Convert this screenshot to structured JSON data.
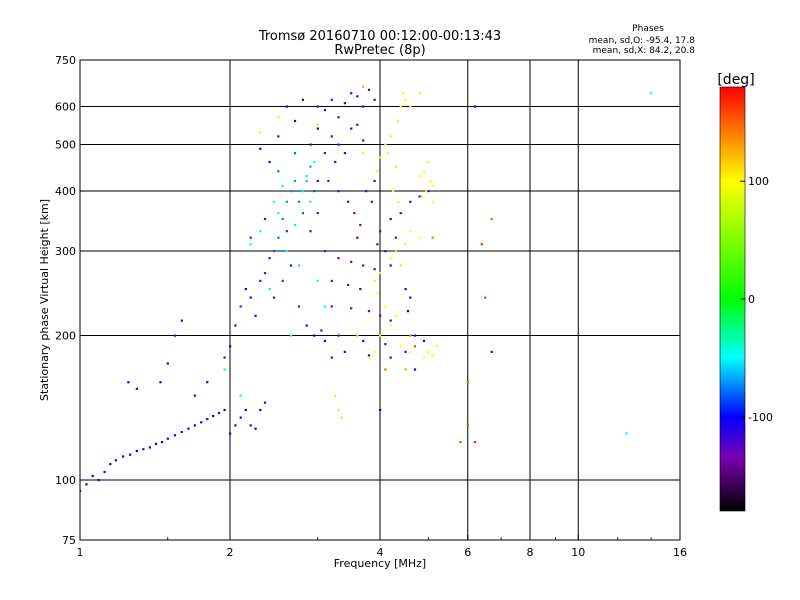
{
  "header": {
    "title_line1": "Tromsø 20160710 00:12:00-00:13:43",
    "title_line2": "RwPretec (8p)",
    "stats_title": "Phases",
    "stats_o": "mean, sd,O: -95.4, 17.8",
    "stats_x": "mean, sd,X:  84.2, 20.8"
  },
  "chart_data": {
    "type": "scatter",
    "xlabel": "Frequency [MHz]",
    "ylabel": "Stationary phase Virtual Height [km]",
    "xscale": "log",
    "yscale": "log",
    "xlim": [
      1,
      16
    ],
    "ylim": [
      75,
      750
    ],
    "x_ticks": [
      1,
      2,
      4,
      6,
      8,
      10,
      16
    ],
    "x_tick_labels": [
      "1",
      "2",
      "4",
      "6",
      "8",
      "10",
      "16"
    ],
    "y_ticks": [
      75,
      100,
      200,
      300,
      400,
      500,
      600,
      750
    ],
    "y_tick_labels": [
      "75",
      "100",
      "200",
      "300",
      "400",
      "500",
      "600",
      "750"
    ],
    "grid": true,
    "colorbar": {
      "label": "[deg]",
      "range": [
        -180,
        180
      ],
      "ticks": [
        -100,
        0,
        100
      ],
      "tick_labels": [
        "-100",
        "0",
        "100"
      ],
      "stops": [
        {
          "value": -180,
          "color": "#000000"
        },
        {
          "value": -135,
          "color": "#7a00b0"
        },
        {
          "value": -100,
          "color": "#0000ff"
        },
        {
          "value": -50,
          "color": "#00ffff"
        },
        {
          "value": 0,
          "color": "#00ff00"
        },
        {
          "value": 100,
          "color": "#ffff00"
        },
        {
          "value": 140,
          "color": "#ff8000"
        },
        {
          "value": 180,
          "color": "#ff0000"
        }
      ]
    },
    "series": [
      {
        "mode": "O",
        "points": [
          [
            1.0,
            95,
            -110
          ],
          [
            1.03,
            98,
            -105
          ],
          [
            1.06,
            102,
            -100
          ],
          [
            1.09,
            100,
            -108
          ],
          [
            1.12,
            104,
            -102
          ],
          [
            1.15,
            108,
            -110
          ],
          [
            1.18,
            110,
            -100
          ],
          [
            1.22,
            112,
            -106
          ],
          [
            1.26,
            113,
            -98
          ],
          [
            1.3,
            115,
            -104
          ],
          [
            1.34,
            116,
            -110
          ],
          [
            1.38,
            117,
            -100
          ],
          [
            1.42,
            119,
            -105
          ],
          [
            1.46,
            120,
            -100
          ],
          [
            1.5,
            122,
            -108
          ],
          [
            1.55,
            124,
            -102
          ],
          [
            1.6,
            126,
            -106
          ],
          [
            1.65,
            128,
            -98
          ],
          [
            1.7,
            130,
            -104
          ],
          [
            1.75,
            132,
            -100
          ],
          [
            1.8,
            134,
            -110
          ],
          [
            1.85,
            136,
            -102
          ],
          [
            1.9,
            138,
            -106
          ],
          [
            1.95,
            140,
            -100
          ],
          [
            2.0,
            125,
            -100
          ],
          [
            2.05,
            130,
            -105
          ],
          [
            2.1,
            135,
            -98
          ],
          [
            2.15,
            140,
            -102
          ],
          [
            2.2,
            130,
            -110
          ],
          [
            2.25,
            128,
            -100
          ],
          [
            2.3,
            140,
            -104
          ],
          [
            2.35,
            145,
            -96
          ],
          [
            1.45,
            160,
            -98
          ],
          [
            1.5,
            175,
            -102
          ],
          [
            1.55,
            200,
            -96
          ],
          [
            1.6,
            215,
            -100
          ],
          [
            1.3,
            155,
            -105
          ],
          [
            1.25,
            160,
            -100
          ],
          [
            1.7,
            150,
            -98
          ],
          [
            1.8,
            160,
            -100
          ],
          [
            1.95,
            180,
            -95
          ],
          [
            2.0,
            190,
            -100
          ],
          [
            2.05,
            210,
            -96
          ],
          [
            2.1,
            230,
            -90
          ],
          [
            2.15,
            250,
            -100
          ],
          [
            2.2,
            240,
            -95
          ],
          [
            2.25,
            220,
            -98
          ],
          [
            2.3,
            260,
            -92
          ],
          [
            2.35,
            270,
            -90
          ],
          [
            2.4,
            290,
            -95
          ],
          [
            2.45,
            300,
            -85
          ],
          [
            2.5,
            320,
            -80
          ],
          [
            2.55,
            350,
            -75
          ],
          [
            2.6,
            380,
            -70
          ],
          [
            2.65,
            400,
            -72
          ],
          [
            2.7,
            420,
            -68
          ],
          [
            2.75,
            380,
            -75
          ],
          [
            2.8,
            360,
            -80
          ],
          [
            2.85,
            420,
            -65
          ],
          [
            2.9,
            450,
            -70
          ],
          [
            2.95,
            400,
            -85
          ],
          [
            3.0,
            360,
            -90
          ],
          [
            2.5,
            440,
            -78
          ],
          [
            2.6,
            330,
            -88
          ],
          [
            2.4,
            460,
            -100
          ],
          [
            2.3,
            490,
            -102
          ],
          [
            2.5,
            520,
            -95
          ],
          [
            2.7,
            480,
            -80
          ],
          [
            2.9,
            330,
            -92
          ],
          [
            3.0,
            420,
            -100
          ],
          [
            2.2,
            320,
            -90
          ],
          [
            2.35,
            350,
            -95
          ],
          [
            2.45,
            240,
            -92
          ],
          [
            2.55,
            260,
            -88
          ],
          [
            2.65,
            280,
            -95
          ],
          [
            2.75,
            230,
            -90
          ],
          [
            2.85,
            210,
            -98
          ],
          [
            2.95,
            200,
            -100
          ],
          [
            3.05,
            205,
            -95
          ],
          [
            3.1,
            195,
            -100
          ],
          [
            3.0,
            600,
            -120
          ],
          [
            3.1,
            590,
            -118
          ],
          [
            3.2,
            620,
            -122
          ],
          [
            3.3,
            570,
            -115
          ],
          [
            3.4,
            610,
            -120
          ],
          [
            3.5,
            640,
            -118
          ],
          [
            3.6,
            630,
            -120
          ],
          [
            3.7,
            600,
            -115
          ],
          [
            3.2,
            520,
            -125
          ],
          [
            3.3,
            500,
            -128
          ],
          [
            3.4,
            480,
            -120
          ],
          [
            3.5,
            540,
            -122
          ],
          [
            3.6,
            550,
            -118
          ],
          [
            3.7,
            510,
            -125
          ],
          [
            3.1,
            480,
            -130
          ],
          [
            3.25,
            460,
            -125
          ],
          [
            3.15,
            420,
            -135
          ],
          [
            3.3,
            400,
            -130
          ],
          [
            3.45,
            380,
            -128
          ],
          [
            3.55,
            360,
            -135
          ],
          [
            3.65,
            340,
            -130
          ],
          [
            3.75,
            400,
            -125
          ],
          [
            3.85,
            380,
            -120
          ],
          [
            3.9,
            420,
            -118
          ],
          [
            3.1,
            300,
            -130
          ],
          [
            3.3,
            290,
            -128
          ],
          [
            3.5,
            285,
            -132
          ],
          [
            3.7,
            280,
            -130
          ],
          [
            3.9,
            275,
            -128
          ],
          [
            3.2,
            260,
            -130
          ],
          [
            3.45,
            255,
            -128
          ],
          [
            3.65,
            250,
            -126
          ],
          [
            3.2,
            230,
            -130
          ],
          [
            3.5,
            228,
            -128
          ],
          [
            3.8,
            225,
            -130
          ],
          [
            4.0,
            220,
            -125
          ],
          [
            4.2,
            215,
            -120
          ],
          [
            3.3,
            200,
            -125
          ],
          [
            3.7,
            195,
            -120
          ],
          [
            4.1,
            192,
            -118
          ],
          [
            3.4,
            185,
            -122
          ],
          [
            3.8,
            182,
            -120
          ],
          [
            4.2,
            180,
            -118
          ],
          [
            4.5,
            185,
            -115
          ],
          [
            4.7,
            200,
            -110
          ],
          [
            4.9,
            195,
            -108
          ],
          [
            3.2,
            180,
            -120
          ],
          [
            3.6,
            320,
            -128
          ],
          [
            4.0,
            330,
            -125
          ],
          [
            4.2,
            350,
            -122
          ],
          [
            4.4,
            360,
            -120
          ],
          [
            4.6,
            380,
            -118
          ],
          [
            4.8,
            390,
            -115
          ],
          [
            5.0,
            400,
            -112
          ],
          [
            4.3,
            320,
            -120
          ],
          [
            4.5,
            250,
            -105
          ],
          [
            4.6,
            240,
            -100
          ],
          [
            4.55,
            225,
            -102
          ],
          [
            4.1,
            300,
            -118
          ],
          [
            4.2,
            280,
            -115
          ],
          [
            3.95,
            310,
            -120
          ],
          [
            4.7,
            170,
            -100
          ],
          [
            6.7,
            185,
            -110
          ],
          [
            6.2,
            600,
            -105
          ],
          [
            3.9,
            620,
            -110
          ],
          [
            3.8,
            650,
            -112
          ],
          [
            2.6,
            600,
            -100
          ],
          [
            2.7,
            560,
            -98
          ],
          [
            2.9,
            500,
            -95
          ],
          [
            3.0,
            540,
            -100
          ],
          [
            2.8,
            620,
            -105
          ],
          [
            4.0,
            140,
            -100
          ]
        ]
      },
      {
        "mode": "X",
        "points": [
          [
            4.1,
            500,
            100
          ],
          [
            4.15,
            480,
            95
          ],
          [
            4.2,
            520,
            105
          ],
          [
            4.3,
            450,
            110
          ],
          [
            4.4,
            600,
            100
          ],
          [
            4.45,
            640,
            98
          ],
          [
            4.5,
            620,
            102
          ],
          [
            4.35,
            560,
            96
          ],
          [
            4.0,
            470,
            90
          ],
          [
            3.95,
            440,
            95
          ],
          [
            4.25,
            400,
            100
          ],
          [
            4.35,
            380,
            98
          ],
          [
            4.2,
            290,
            100
          ],
          [
            4.0,
            270,
            95
          ],
          [
            3.9,
            260,
            105
          ],
          [
            3.95,
            245,
            100
          ],
          [
            4.1,
            230,
            98
          ],
          [
            4.3,
            220,
            102
          ],
          [
            4.2,
            210,
            100
          ],
          [
            4.0,
            200,
            96
          ],
          [
            3.9,
            185,
            100
          ],
          [
            3.8,
            180,
            95
          ],
          [
            4.4,
            190,
            102
          ],
          [
            4.6,
            185,
            98
          ],
          [
            5.0,
            185,
            105
          ],
          [
            5.1,
            182,
            100
          ],
          [
            5.2,
            190,
            98
          ],
          [
            4.9,
            180,
            100
          ],
          [
            4.8,
            430,
            95
          ],
          [
            4.9,
            440,
            100
          ],
          [
            5.0,
            460,
            102
          ],
          [
            5.05,
            420,
            98
          ],
          [
            5.1,
            410,
            100
          ],
          [
            4.95,
            400,
            105
          ],
          [
            4.85,
            390,
            96
          ],
          [
            5.1,
            380,
            102
          ],
          [
            4.8,
            320,
            100
          ],
          [
            4.6,
            330,
            98
          ],
          [
            4.5,
            310,
            104
          ],
          [
            3.6,
            200,
            75
          ],
          [
            3.3,
            140,
            80
          ],
          [
            3.25,
            150,
            85
          ],
          [
            3.35,
            135,
            70
          ],
          [
            2.3,
            530,
            95
          ],
          [
            4.6,
            600,
            100
          ],
          [
            4.8,
            640,
            105
          ],
          [
            3.7,
            480,
            92
          ],
          [
            4.3,
            300,
            110
          ],
          [
            4.4,
            280,
            108
          ],
          [
            4.6,
            200,
            140
          ],
          [
            4.7,
            190,
            160
          ],
          [
            6.0,
            160,
            150
          ],
          [
            6.0,
            130,
            160
          ],
          [
            6.2,
            120,
            170
          ],
          [
            5.8,
            120,
            160
          ],
          [
            6.4,
            310,
            170
          ],
          [
            6.5,
            240,
            160
          ],
          [
            6.7,
            350,
            150
          ],
          [
            5.1,
            320,
            140
          ],
          [
            4.1,
            170,
            150
          ],
          [
            4.5,
            170,
            130
          ],
          [
            3.7,
            660,
            130
          ],
          [
            2.5,
            570,
            110
          ],
          [
            3.0,
            550,
            70
          ]
        ]
      },
      {
        "mode": "other",
        "points": [
          [
            2.2,
            310,
            -40
          ],
          [
            2.3,
            330,
            -45
          ],
          [
            2.5,
            360,
            -50
          ],
          [
            2.7,
            340,
            -45
          ],
          [
            2.8,
            400,
            -55
          ],
          [
            2.9,
            380,
            -40
          ],
          [
            3.0,
            260,
            -50
          ],
          [
            2.6,
            300,
            -45
          ],
          [
            2.4,
            250,
            -40
          ],
          [
            3.1,
            230,
            -45
          ],
          [
            2.75,
            280,
            -55
          ],
          [
            2.65,
            200,
            -50
          ],
          [
            1.95,
            170,
            -40
          ],
          [
            2.1,
            150,
            -45
          ],
          [
            12.5,
            125,
            -50
          ],
          [
            14.0,
            640,
            -45
          ],
          [
            2.85,
            430,
            -40
          ],
          [
            2.95,
            460,
            -48
          ],
          [
            2.55,
            410,
            -52
          ],
          [
            2.45,
            380,
            -42
          ]
        ]
      }
    ]
  }
}
